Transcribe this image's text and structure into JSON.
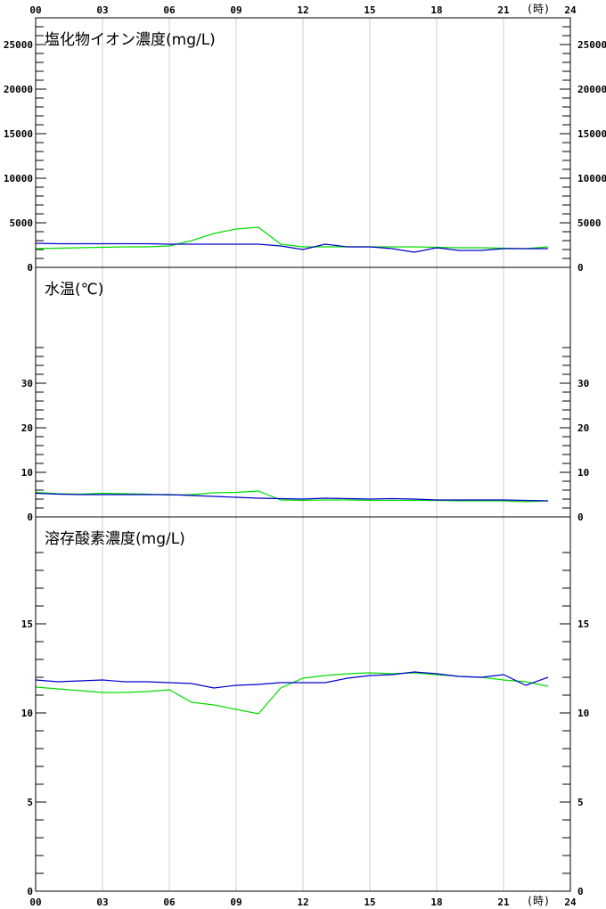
{
  "x_axis": {
    "tick_labels": [
      "00",
      "03",
      "06",
      "09",
      "12",
      "15",
      "18",
      "21",
      "24"
    ],
    "unit": "(時)"
  },
  "colors": {
    "series_a": "#00dd00",
    "series_b": "#0000cc",
    "grid": "#cccccc",
    "axis": "#000000"
  },
  "chart_data": [
    {
      "type": "line",
      "title": "塩化物イオン濃度(mg/L)",
      "xlim": [
        0,
        24
      ],
      "ylim": [
        0,
        28000
      ],
      "y_tick_labels": [
        "0",
        "5000",
        "10000",
        "15000",
        "20000",
        "25000"
      ],
      "grid": "vertical",
      "x": [
        0,
        1,
        2,
        3,
        4,
        5,
        6,
        7,
        8,
        9,
        10,
        11,
        12,
        13,
        14,
        15,
        16,
        17,
        18,
        19,
        20,
        21,
        22,
        23
      ],
      "series": [
        {
          "color": "#00dd00",
          "values": [
            2100,
            2150,
            2200,
            2250,
            2300,
            2300,
            2400,
            3000,
            3800,
            4300,
            4500,
            2600,
            2300,
            2300,
            2300,
            2300,
            2300,
            2300,
            2250,
            2200,
            2200,
            2150,
            2100,
            2300
          ]
        },
        {
          "color": "#0000cc",
          "values": [
            2700,
            2650,
            2650,
            2650,
            2650,
            2650,
            2600,
            2600,
            2600,
            2600,
            2600,
            2400,
            2000,
            2600,
            2300,
            2300,
            2100,
            1700,
            2200,
            1900,
            1900,
            2100,
            2100,
            2100
          ]
        }
      ]
    },
    {
      "type": "line",
      "title": "水温(℃)",
      "xlim": [
        0,
        24
      ],
      "ylim": [
        0,
        56
      ],
      "y_tick_labels": [
        "0",
        "10",
        "20",
        "30"
      ],
      "grid": "vertical",
      "x": [
        0,
        1,
        2,
        3,
        4,
        5,
        6,
        7,
        8,
        9,
        10,
        11,
        12,
        13,
        14,
        15,
        16,
        17,
        18,
        19,
        20,
        21,
        22,
        23
      ],
      "series": [
        {
          "color": "#00dd00",
          "values": [
            5.5,
            5.2,
            5.1,
            5.3,
            5.2,
            5.1,
            4.9,
            5.0,
            5.4,
            5.5,
            5.8,
            3.8,
            3.7,
            3.8,
            3.8,
            3.7,
            3.7,
            3.7,
            3.7,
            3.6,
            3.6,
            3.6,
            3.4,
            3.6
          ]
        },
        {
          "color": "#0000cc",
          "values": [
            5.3,
            5.1,
            5.0,
            5.0,
            5.0,
            5.0,
            5.0,
            4.8,
            4.6,
            4.4,
            4.2,
            4.1,
            4.0,
            4.2,
            4.1,
            4.0,
            4.1,
            4.0,
            3.8,
            3.8,
            3.8,
            3.8,
            3.7,
            3.6
          ]
        }
      ]
    },
    {
      "type": "line",
      "title": "溶存酸素濃度(mg/L)",
      "xlim": [
        0,
        24
      ],
      "ylim": [
        0,
        21
      ],
      "y_tick_labels": [
        "0",
        "5",
        "10",
        "15"
      ],
      "grid": "vertical",
      "x": [
        0,
        1,
        2,
        3,
        4,
        5,
        6,
        7,
        8,
        9,
        10,
        11,
        12,
        13,
        14,
        15,
        16,
        17,
        18,
        19,
        20,
        21,
        22,
        23
      ],
      "series": [
        {
          "color": "#00dd00",
          "values": [
            11.45,
            11.35,
            11.25,
            11.15,
            11.15,
            11.2,
            11.3,
            10.6,
            10.45,
            10.2,
            9.95,
            11.4,
            11.95,
            12.1,
            12.2,
            12.25,
            12.2,
            12.25,
            12.15,
            12.05,
            12.0,
            11.85,
            11.75,
            11.5
          ]
        },
        {
          "color": "#0000cc",
          "values": [
            11.85,
            11.75,
            11.8,
            11.85,
            11.75,
            11.75,
            11.7,
            11.65,
            11.4,
            11.55,
            11.6,
            11.7,
            11.7,
            11.7,
            11.95,
            12.1,
            12.15,
            12.3,
            12.2,
            12.05,
            12.0,
            12.15,
            11.55,
            12.0
          ]
        }
      ]
    }
  ]
}
